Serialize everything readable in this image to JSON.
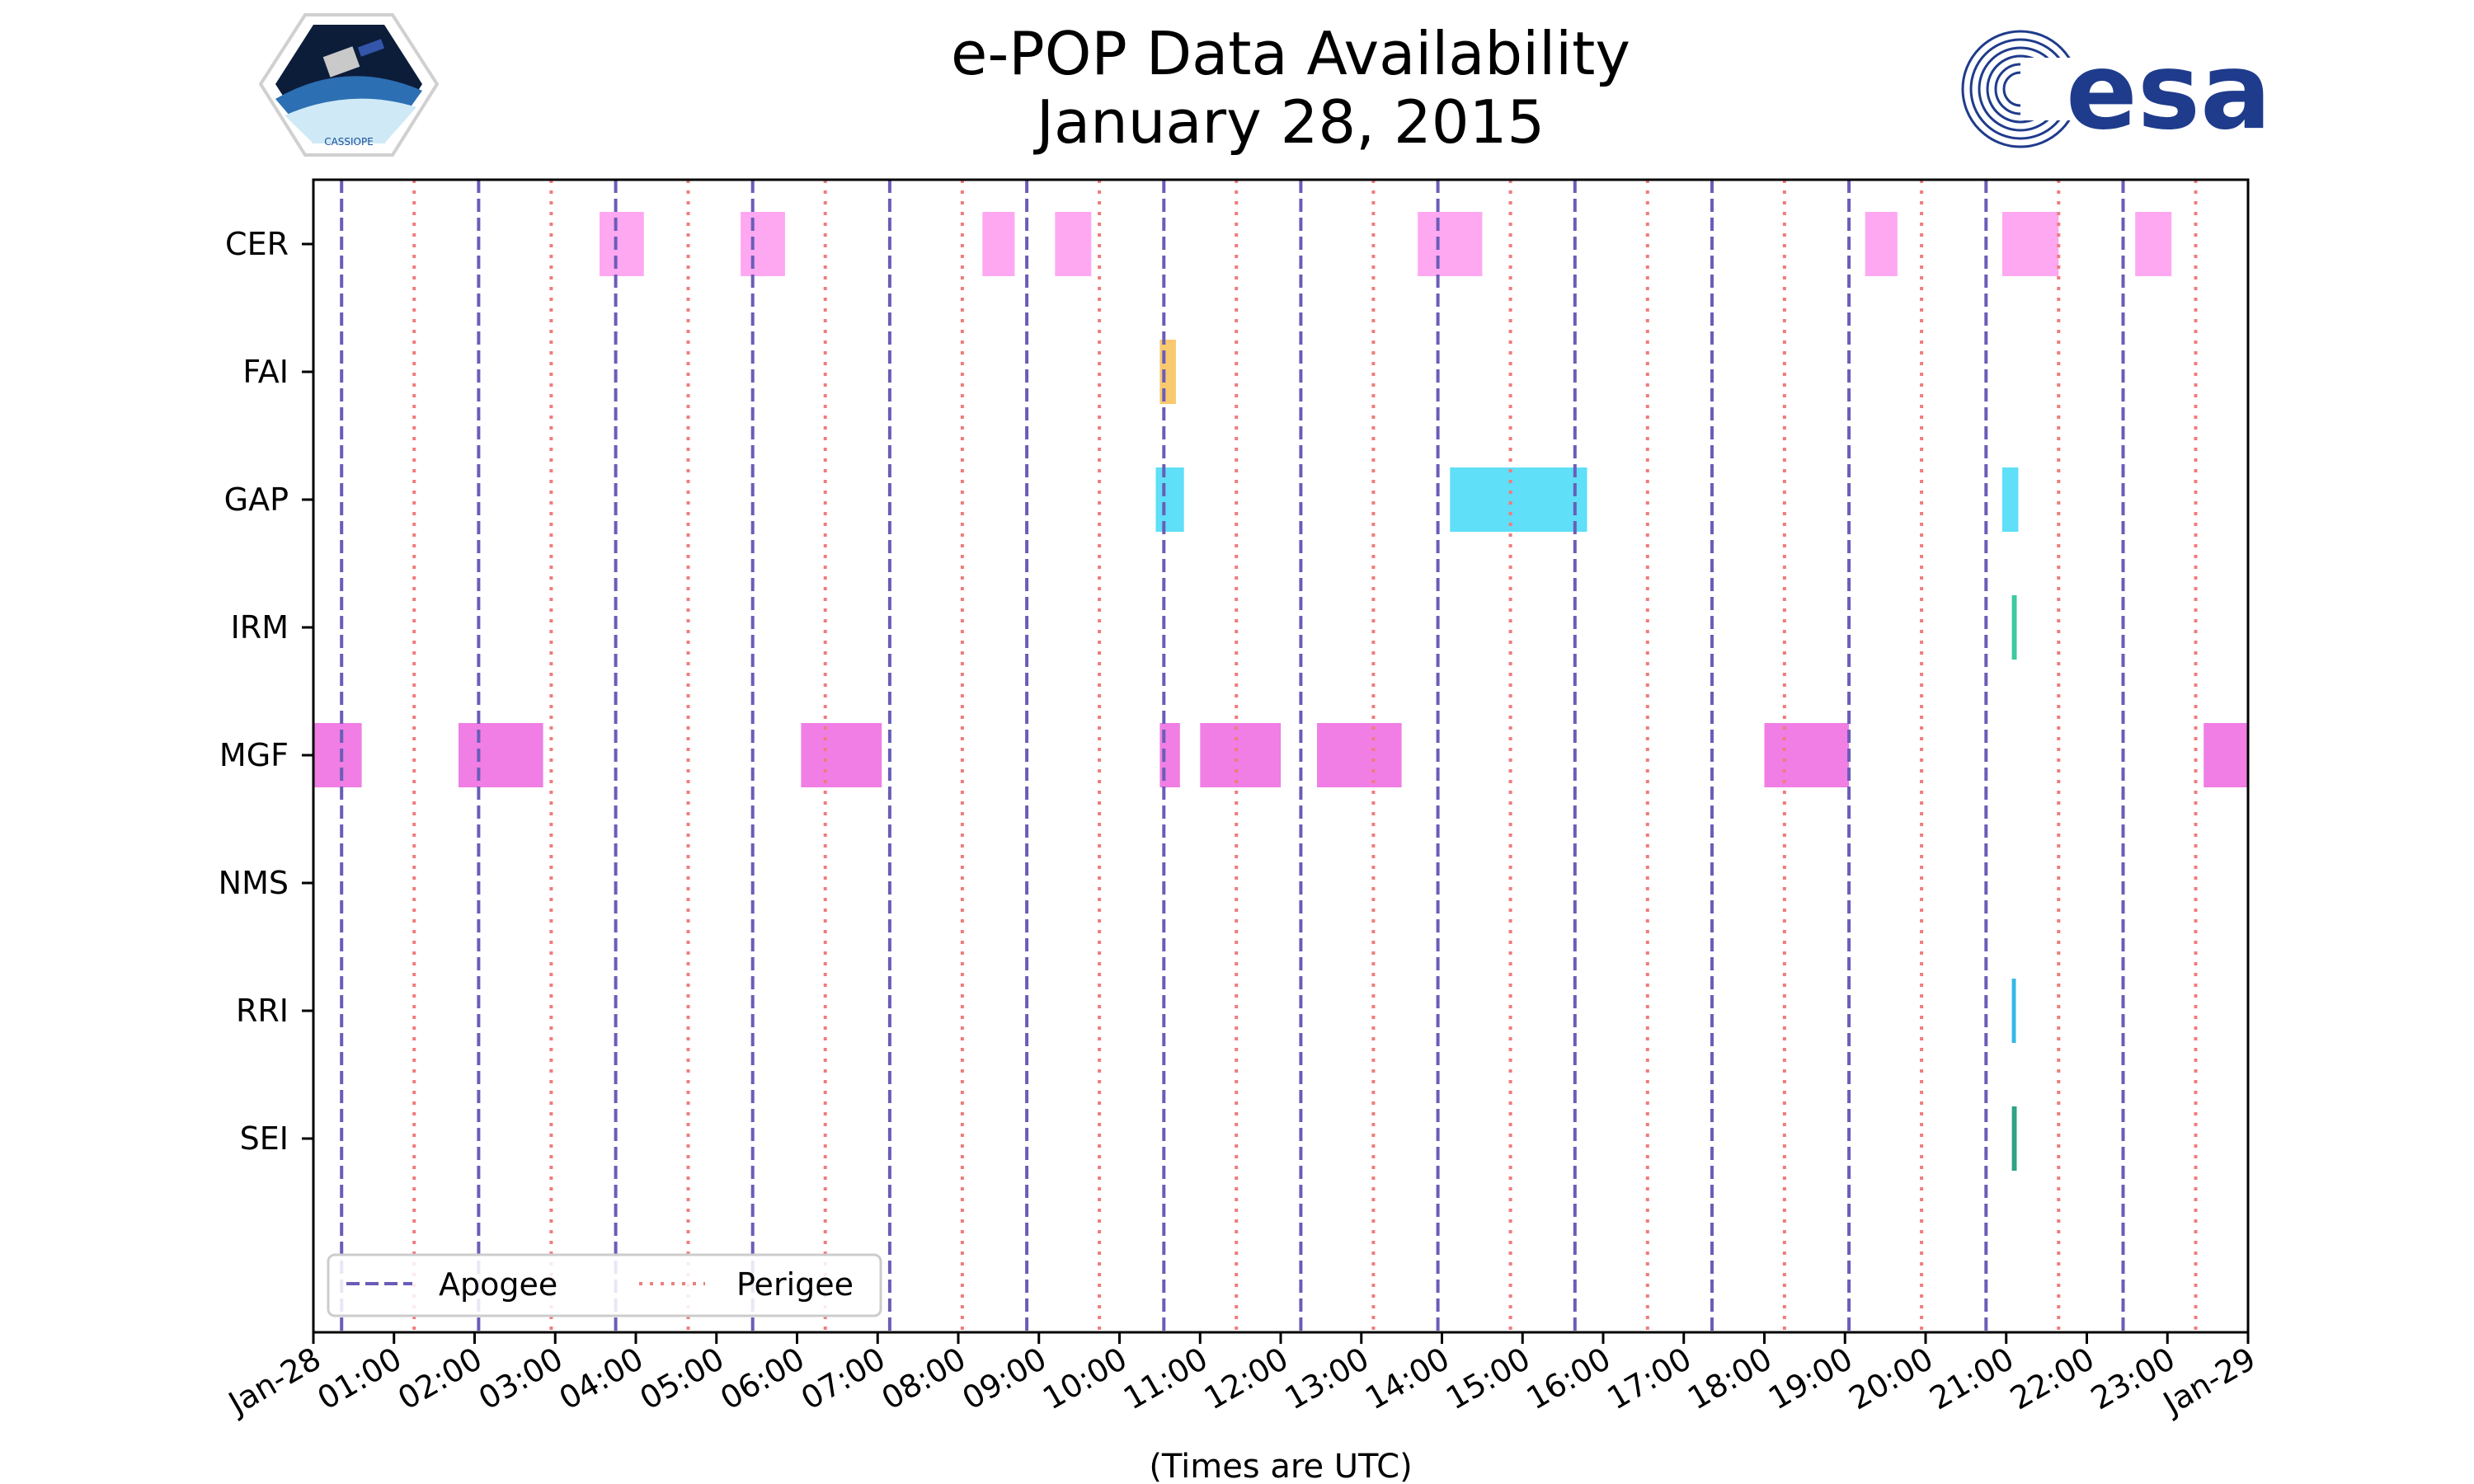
{
  "chart_data": {
    "type": "timeline",
    "title": "e-POP Data Availability",
    "subtitle": "January 28, 2015",
    "xlabel": "(Times are UTC)",
    "x_unit": "hours since 2015-01-28 00:00 UTC",
    "xlim": [
      0,
      24
    ],
    "xtick_labels": [
      "Jan-28",
      "01:00",
      "02:00",
      "03:00",
      "04:00",
      "05:00",
      "06:00",
      "07:00",
      "08:00",
      "09:00",
      "10:00",
      "11:00",
      "12:00",
      "13:00",
      "14:00",
      "15:00",
      "16:00",
      "17:00",
      "18:00",
      "19:00",
      "20:00",
      "21:00",
      "22:00",
      "23:00",
      "Jan-29"
    ],
    "instruments": [
      "CER",
      "FAI",
      "GAP",
      "IRM",
      "MGF",
      "NMS",
      "RRI",
      "SEI"
    ],
    "series": [
      {
        "name": "CER",
        "color": "#FFA8F2",
        "intervals": [
          [
            3.55,
            4.1
          ],
          [
            5.3,
            5.85
          ],
          [
            8.3,
            8.7
          ],
          [
            9.2,
            9.65
          ],
          [
            13.7,
            14.5
          ],
          [
            19.25,
            19.65
          ],
          [
            20.95,
            21.65
          ],
          [
            22.6,
            23.05
          ]
        ]
      },
      {
        "name": "FAI",
        "color": "#F8C96E",
        "intervals": [
          [
            10.5,
            10.7
          ]
        ]
      },
      {
        "name": "GAP",
        "color": "#5FDFF8",
        "intervals": [
          [
            10.45,
            10.8
          ],
          [
            14.1,
            15.8
          ],
          [
            20.95,
            21.15
          ]
        ]
      },
      {
        "name": "IRM",
        "color": "#3CC9A0",
        "intervals": [
          [
            21.07,
            21.13
          ]
        ]
      },
      {
        "name": "MGF",
        "color": "#F07EE4",
        "intervals": [
          [
            0.0,
            0.6
          ],
          [
            1.8,
            2.85
          ],
          [
            6.05,
            7.05
          ],
          [
            10.5,
            10.75
          ],
          [
            11.0,
            12.0
          ],
          [
            12.45,
            13.5
          ],
          [
            18.0,
            19.05
          ],
          [
            23.45,
            24.0
          ]
        ]
      },
      {
        "name": "NMS",
        "color": "#F07EE4",
        "intervals": []
      },
      {
        "name": "RRI",
        "color": "#35B9E6",
        "intervals": [
          [
            21.07,
            21.12
          ]
        ]
      },
      {
        "name": "SEI",
        "color": "#2EA384",
        "intervals": [
          [
            21.07,
            21.13
          ]
        ]
      }
    ],
    "apogee_times": [
      0.35,
      2.05,
      3.75,
      5.45,
      7.15,
      8.85,
      10.55,
      12.25,
      13.95,
      15.65,
      17.35,
      19.05,
      20.75,
      22.45
    ],
    "perigee_times": [
      1.25,
      2.95,
      4.65,
      6.35,
      8.05,
      9.75,
      11.45,
      13.15,
      14.85,
      16.55,
      18.25,
      19.95,
      21.65,
      23.35
    ],
    "apogee_color": "#6A5DB8",
    "perigee_color": "#F07C7C",
    "legend": {
      "items": [
        "Apogee",
        "Perigee"
      ],
      "loc": "lower-left"
    }
  },
  "logos": {
    "left": {
      "name": "CASSIOPE",
      "text": "CASSIOPE"
    },
    "right": {
      "name": "esa",
      "text": "esa",
      "color": "#1F3B8C"
    }
  }
}
